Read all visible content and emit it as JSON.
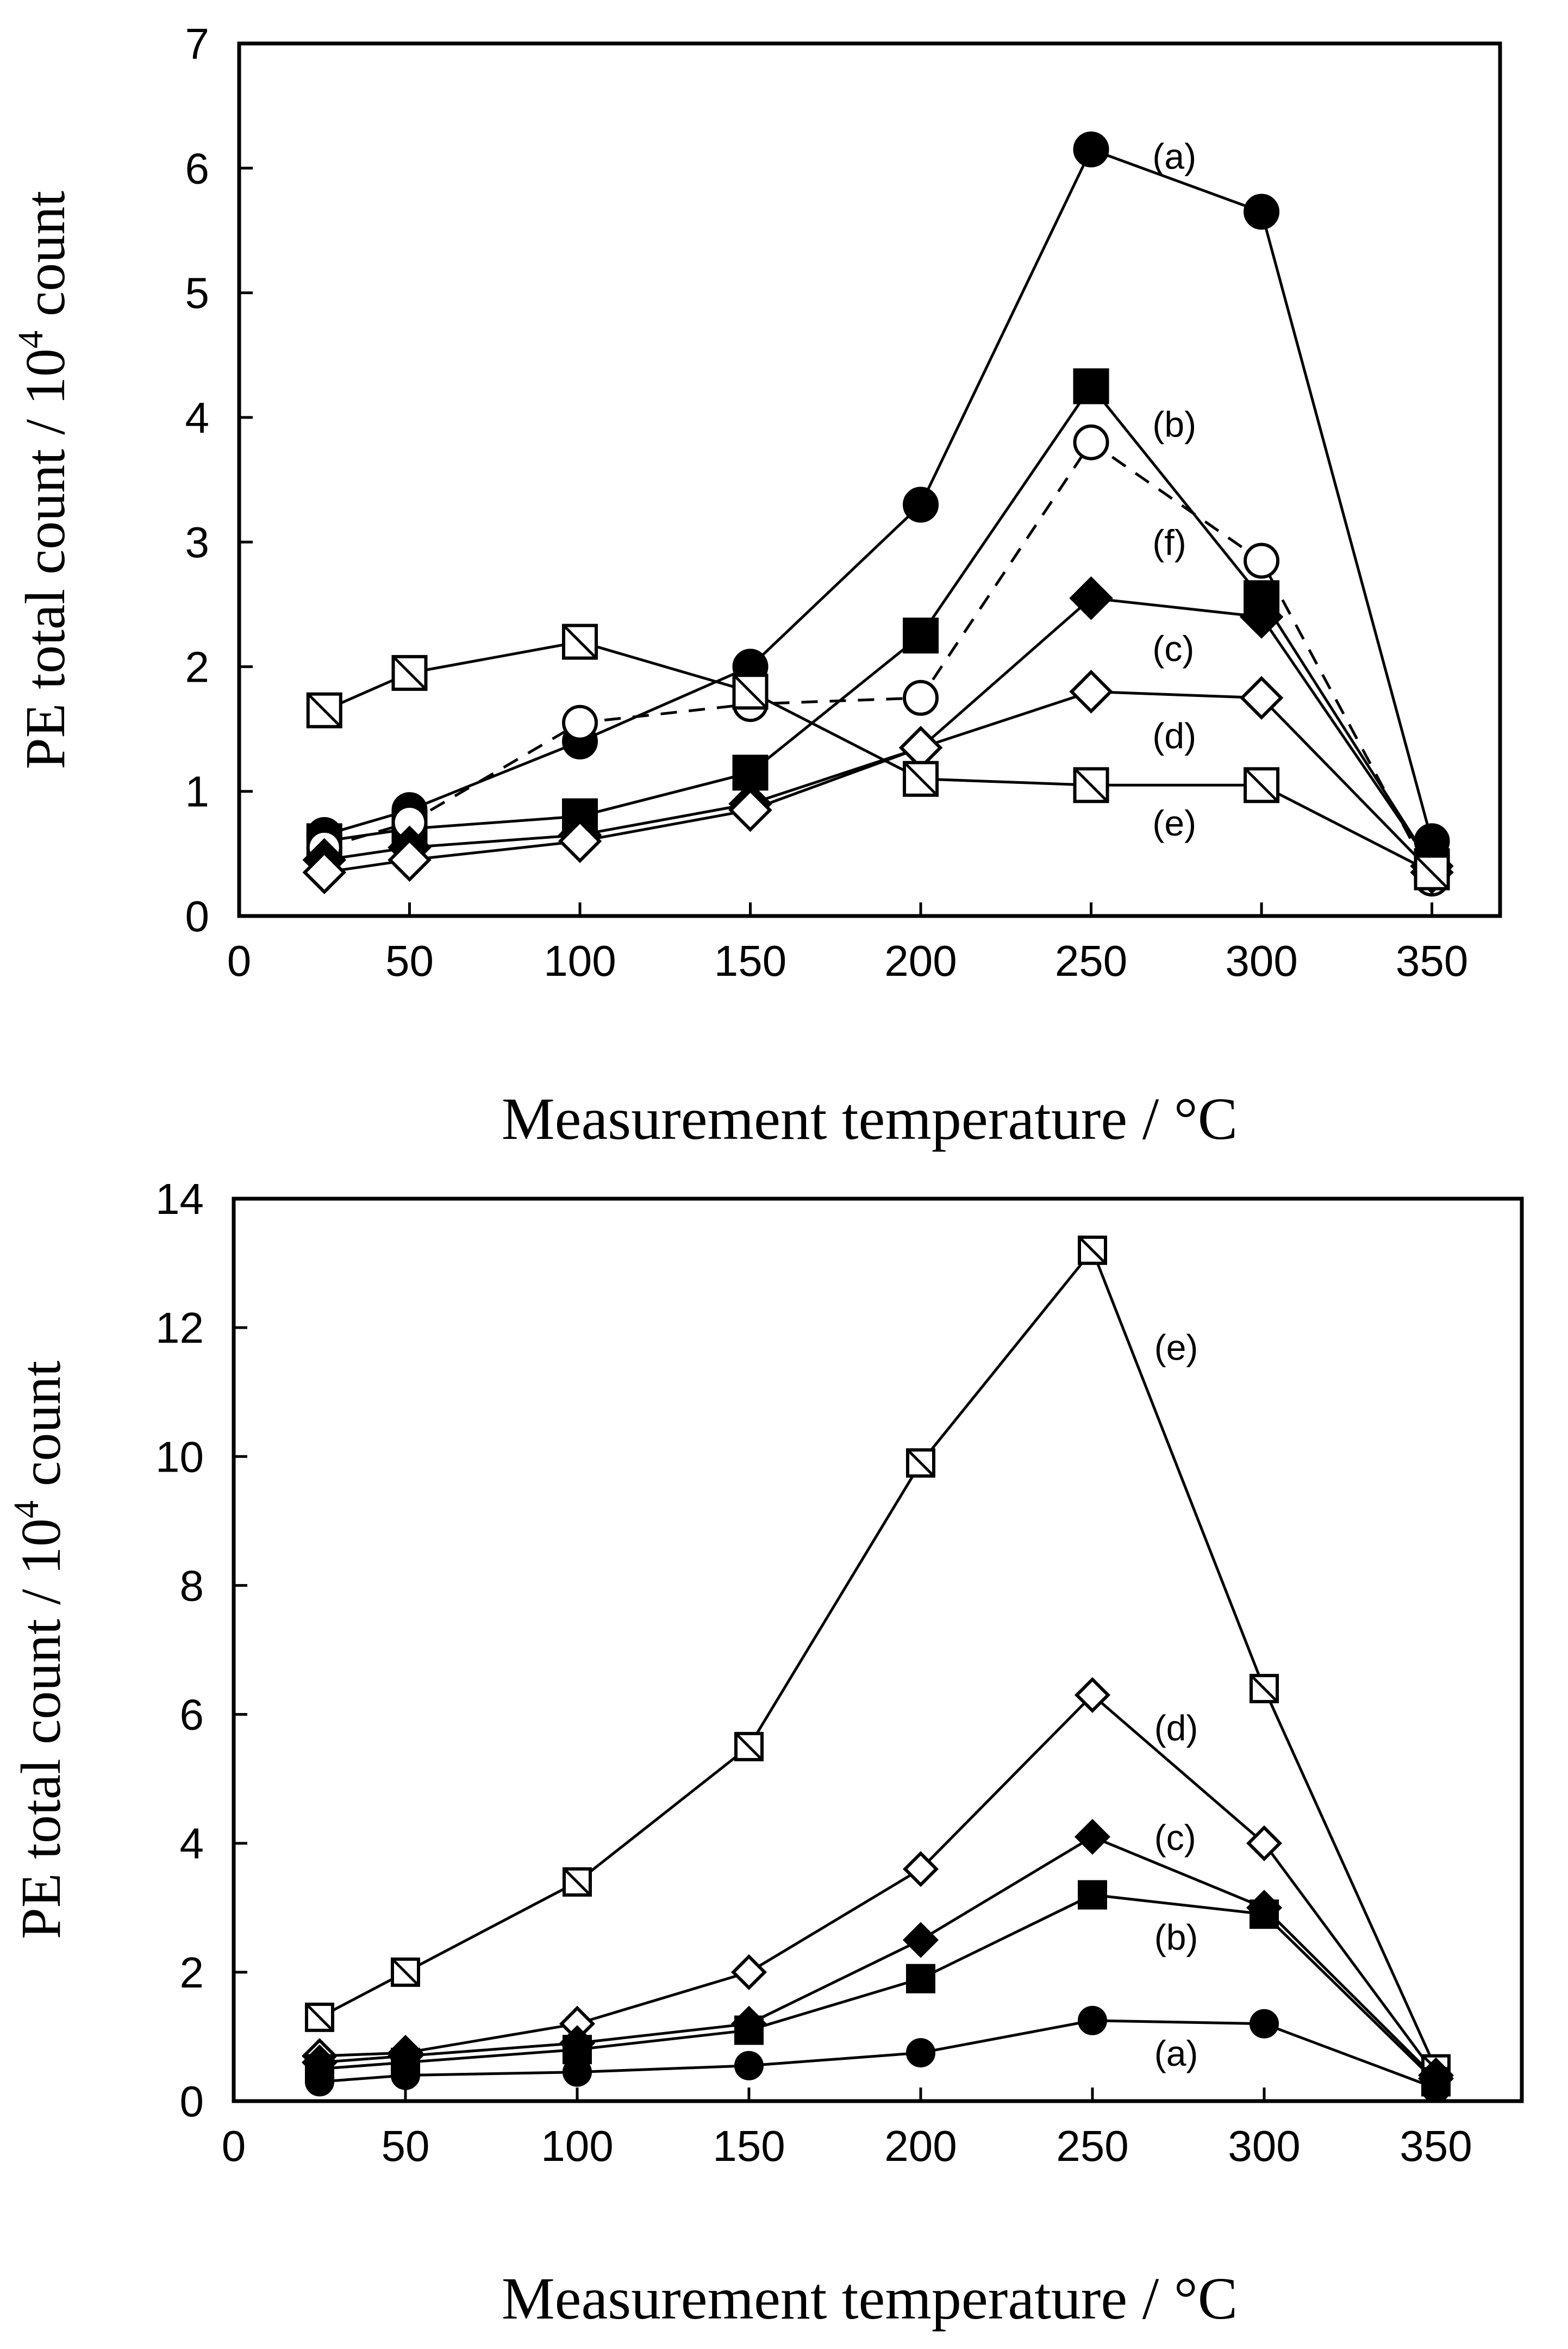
{
  "chart_data": [
    {
      "type": "line",
      "xlabel": "Measurement temperature / °C",
      "ylabel_main": "PE total count / 10",
      "ylabel_sup": "4",
      "ylabel_rest": " count",
      "xlim": [
        0,
        370
      ],
      "ylim": [
        0,
        7
      ],
      "xticks": [
        0,
        50,
        100,
        150,
        200,
        250,
        300,
        350
      ],
      "yticks": [
        0,
        1,
        2,
        3,
        4,
        5,
        6,
        7
      ],
      "series": [
        {
          "name": "(a)",
          "marker": "filled-circle",
          "dashed": false,
          "x": [
            25,
            50,
            100,
            150,
            200,
            250,
            300,
            350
          ],
          "values": [
            0.65,
            0.85,
            1.4,
            2.0,
            3.3,
            6.15,
            5.65,
            0.6
          ]
        },
        {
          "name": "(b)",
          "marker": "filled-square",
          "dashed": false,
          "x": [
            25,
            50,
            100,
            150,
            200,
            250,
            300,
            350
          ],
          "values": [
            0.6,
            0.7,
            0.8,
            1.15,
            2.25,
            4.25,
            2.55,
            0.4
          ]
        },
        {
          "name": "(f)",
          "marker": "open-circle",
          "dashed": true,
          "x": [
            25,
            50,
            100,
            150,
            200,
            250,
            300,
            350
          ],
          "values": [
            0.55,
            0.75,
            1.55,
            1.7,
            1.75,
            3.8,
            2.85,
            0.3
          ]
        },
        {
          "name": "(c)",
          "marker": "filled-diamond",
          "dashed": false,
          "x": [
            25,
            50,
            100,
            150,
            200,
            250,
            300,
            350
          ],
          "values": [
            0.45,
            0.55,
            0.65,
            0.9,
            1.35,
            2.55,
            2.4,
            0.4
          ]
        },
        {
          "name": "(d)",
          "marker": "open-diamond",
          "dashed": false,
          "x": [
            25,
            50,
            100,
            150,
            200,
            250,
            300,
            350
          ],
          "values": [
            0.35,
            0.45,
            0.6,
            0.85,
            1.35,
            1.8,
            1.75,
            0.35
          ]
        },
        {
          "name": "(e)",
          "marker": "hatched-square",
          "dashed": false,
          "x": [
            25,
            50,
            100,
            150,
            200,
            250,
            300,
            350
          ],
          "values": [
            1.65,
            1.95,
            2.2,
            1.8,
            1.1,
            1.05,
            1.05,
            0.35
          ]
        }
      ],
      "labels": [
        {
          "text": "(a)",
          "x": 268,
          "y": 6.1
        },
        {
          "text": "(b)",
          "x": 268,
          "y": 3.95
        },
        {
          "text": "(f)",
          "x": 268,
          "y": 3.0
        },
        {
          "text": "(c)",
          "x": 268,
          "y": 2.15
        },
        {
          "text": "(d)",
          "x": 268,
          "y": 1.45
        },
        {
          "text": "(e)",
          "x": 268,
          "y": 0.75
        }
      ]
    },
    {
      "type": "line",
      "xlabel": "Measurement temperature / °C",
      "ylabel_main": "PE total count / 10",
      "ylabel_sup": "4",
      "ylabel_rest": " count",
      "xlim": [
        0,
        375
      ],
      "ylim": [
        0,
        14
      ],
      "xticks": [
        0,
        50,
        100,
        150,
        200,
        250,
        300,
        350
      ],
      "yticks": [
        0,
        2,
        4,
        6,
        8,
        10,
        12,
        14
      ],
      "series": [
        {
          "name": "(e)",
          "marker": "hatched-square",
          "dashed": false,
          "x": [
            25,
            50,
            100,
            150,
            200,
            250,
            300,
            350
          ],
          "values": [
            1.3,
            2.0,
            3.4,
            5.5,
            9.9,
            13.2,
            6.4,
            0.5
          ]
        },
        {
          "name": "(d)",
          "marker": "open-diamond",
          "dashed": false,
          "x": [
            25,
            50,
            100,
            150,
            200,
            250,
            300,
            350
          ],
          "values": [
            0.7,
            0.75,
            1.2,
            2.0,
            3.6,
            6.3,
            4.0,
            0.4
          ]
        },
        {
          "name": "(c)",
          "marker": "filled-diamond",
          "dashed": false,
          "x": [
            25,
            50,
            100,
            150,
            200,
            250,
            300,
            350
          ],
          "values": [
            0.6,
            0.7,
            0.9,
            1.2,
            2.5,
            4.1,
            3.0,
            0.35
          ]
        },
        {
          "name": "(b)",
          "marker": "filled-square",
          "dashed": false,
          "x": [
            25,
            50,
            100,
            150,
            200,
            250,
            300,
            350
          ],
          "values": [
            0.5,
            0.6,
            0.8,
            1.1,
            1.9,
            3.2,
            2.9,
            0.3
          ]
        },
        {
          "name": "(a)",
          "marker": "filled-circle",
          "dashed": false,
          "x": [
            25,
            50,
            100,
            150,
            200,
            250,
            300,
            350
          ],
          "values": [
            0.3,
            0.4,
            0.45,
            0.55,
            0.75,
            1.25,
            1.2,
            0.2
          ]
        }
      ],
      "labels": [
        {
          "text": "(e)",
          "x": 268,
          "y": 11.7
        },
        {
          "text": "(d)",
          "x": 268,
          "y": 5.8
        },
        {
          "text": "(c)",
          "x": 268,
          "y": 4.1
        },
        {
          "text": "(b)",
          "x": 268,
          "y": 2.55
        },
        {
          "text": "(a)",
          "x": 268,
          "y": 0.75
        }
      ]
    }
  ]
}
